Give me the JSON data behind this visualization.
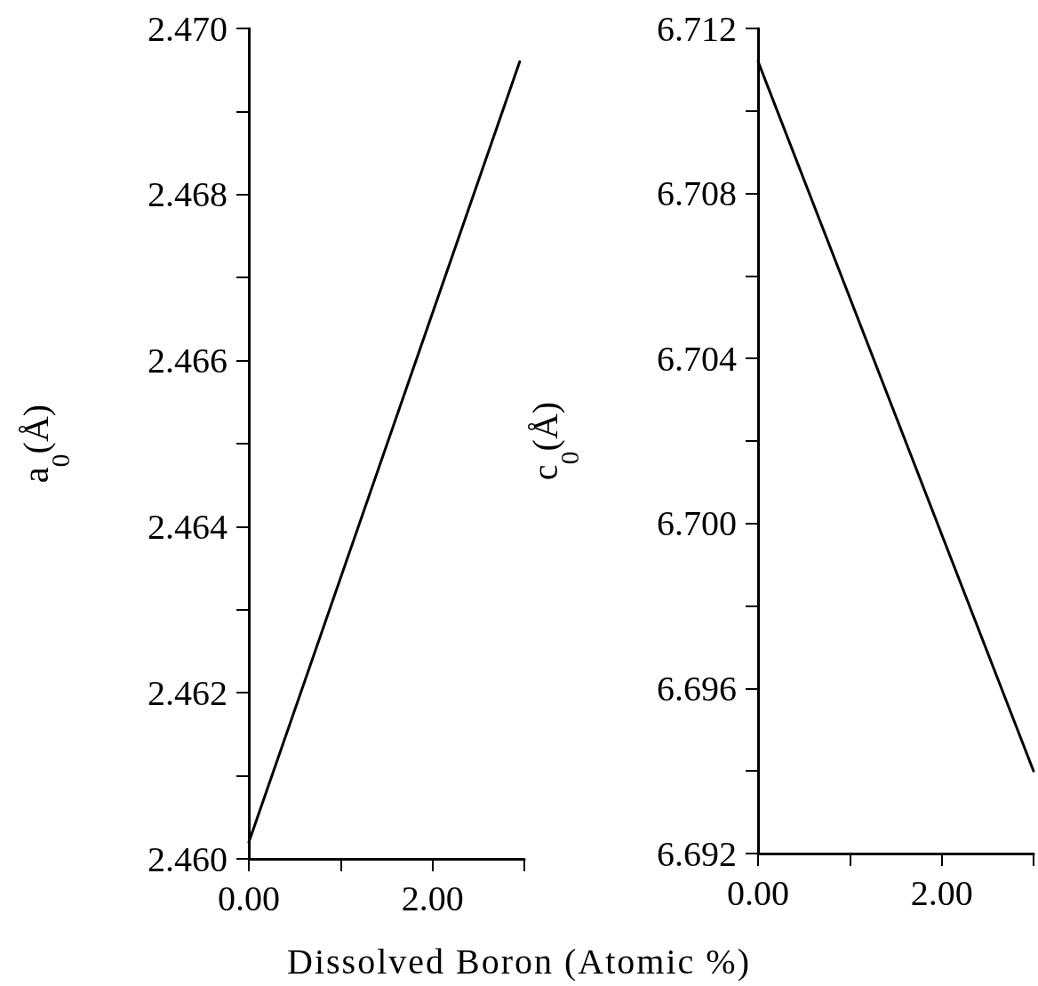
{
  "chart_data": [
    {
      "type": "line",
      "xlabel": "Dissolved Boron (Atomic %)",
      "ylabel": "a$_{0}$(Å)",
      "x": [
        0,
        2.95
      ],
      "values": [
        2.4602,
        2.4696
      ],
      "xlim": [
        0,
        3
      ],
      "xticks": [
        {
          "value": 0,
          "label": "0.00"
        },
        {
          "value": 1,
          "label": null
        },
        {
          "value": 2,
          "label": "2.00"
        },
        {
          "value": 3,
          "label": null
        }
      ],
      "ylim": [
        2.46,
        2.47
      ],
      "yticks": [
        {
          "value": 2.46,
          "label": "2.460"
        },
        {
          "value": 2.461,
          "label": null
        },
        {
          "value": 2.462,
          "label": "2.462"
        },
        {
          "value": 2.463,
          "label": null
        },
        {
          "value": 2.464,
          "label": "2.464"
        },
        {
          "value": 2.465,
          "label": null
        },
        {
          "value": 2.466,
          "label": "2.466"
        },
        {
          "value": 2.467,
          "label": null
        },
        {
          "value": 2.468,
          "label": "2.468"
        },
        {
          "value": 2.469,
          "label": null
        },
        {
          "value": 2.47,
          "label": "2.470"
        }
      ],
      "color": "#000000",
      "marker": "none",
      "line_style": "solid",
      "grid": false
    },
    {
      "type": "line",
      "ylabel": "c$_{0}$(Å)",
      "x": [
        0,
        3
      ],
      "values": [
        6.7112,
        6.694
      ],
      "xlim": [
        0,
        3
      ],
      "xticks": [
        {
          "value": 0,
          "label": "0.00"
        },
        {
          "value": 1,
          "label": null
        },
        {
          "value": 2,
          "label": "2.00"
        },
        {
          "value": 3,
          "label": null
        }
      ],
      "ylim": [
        6.692,
        6.712
      ],
      "yticks": [
        {
          "value": 6.692,
          "label": "6.692"
        },
        {
          "value": 6.694,
          "label": null
        },
        {
          "value": 6.696,
          "label": "6.696"
        },
        {
          "value": 6.698,
          "label": null
        },
        {
          "value": 6.7,
          "label": "6.700"
        },
        {
          "value": 6.702,
          "label": null
        },
        {
          "value": 6.704,
          "label": "6.704"
        },
        {
          "value": 6.706,
          "label": null
        },
        {
          "value": 6.708,
          "label": "6.708"
        },
        {
          "value": 6.71,
          "label": null
        },
        {
          "value": 6.712,
          "label": "6.712"
        }
      ],
      "color": "#000000",
      "marker": "none",
      "line_style": "solid",
      "grid": false
    }
  ]
}
